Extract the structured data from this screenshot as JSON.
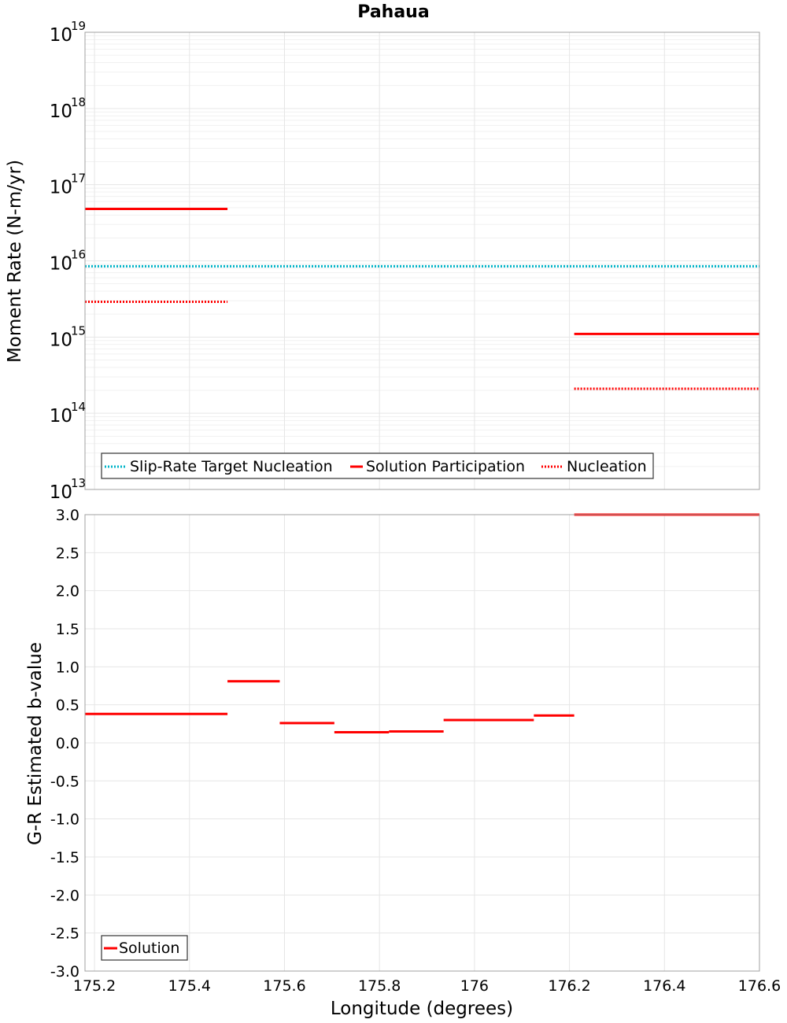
{
  "chart_data": [
    {
      "type": "line",
      "title": "Pahaua",
      "xlabel": "Longitude (degrees)",
      "ylabel": "Moment Rate (N-m/yr)",
      "yscale": "log",
      "xlim": [
        175.18,
        176.6
      ],
      "ylim": [
        10000000000000.0,
        1e+19
      ],
      "y_tick_labels": [
        {
          "base": "10",
          "exp": "13"
        },
        {
          "base": "10",
          "exp": "14"
        },
        {
          "base": "10",
          "exp": "15"
        },
        {
          "base": "10",
          "exp": "16"
        },
        {
          "base": "10",
          "exp": "17"
        },
        {
          "base": "10",
          "exp": "18"
        },
        {
          "base": "10",
          "exp": "19"
        }
      ],
      "legend": [
        "Slip-Rate Target Nucleation",
        "Solution Participation",
        "Nucleation"
      ],
      "series": [
        {
          "name": "Slip-Rate Target Nucleation",
          "color": "#00b4c8",
          "style": "dotted",
          "segments": [
            [
              175.18,
              176.6,
              8500000000000000.0
            ]
          ]
        },
        {
          "name": "Solution Participation",
          "color": "#ff0000",
          "style": "solid",
          "segments": [
            [
              175.18,
              175.48,
              4.8e+16
            ],
            [
              176.21,
              176.6,
              1100000000000000.0
            ]
          ]
        },
        {
          "name": "Nucleation",
          "color": "#ff0000",
          "style": "dotted",
          "segments": [
            [
              175.18,
              175.48,
              2900000000000000.0
            ],
            [
              176.21,
              176.6,
              210000000000000.0
            ]
          ]
        }
      ]
    },
    {
      "type": "line",
      "title": "",
      "xlabel": "Longitude (degrees)",
      "ylabel": "G-R Estimated b-value",
      "xlim": [
        175.18,
        176.6
      ],
      "ylim": [
        -3.0,
        3.0
      ],
      "x_ticks": [
        175.2,
        175.4,
        175.6,
        175.8,
        176.0,
        176.2,
        176.4,
        176.6
      ],
      "x_tick_labels": [
        "175.2",
        "175.4",
        "175.6",
        "175.8",
        "176",
        "176.2",
        "176.4",
        "176.6"
      ],
      "y_ticks": [
        3.0,
        2.5,
        2.0,
        1.5,
        1.0,
        0.5,
        0.0,
        -0.5,
        -1.0,
        -1.5,
        -2.0,
        -2.5,
        -3.0
      ],
      "y_tick_labels": [
        "3.0",
        "2.5",
        "2.0",
        "1.5",
        "1.0",
        "0.5",
        "0.0",
        "-0.5",
        "-1.0",
        "-1.5",
        "-2.0",
        "-2.5",
        "-3.0"
      ],
      "legend": [
        "Solution"
      ],
      "series": [
        {
          "name": "Solution",
          "color": "#ff0000",
          "style": "solid",
          "segments": [
            [
              175.18,
              175.48,
              0.38
            ],
            [
              175.48,
              175.59,
              0.81
            ],
            [
              175.59,
              175.705,
              0.26
            ],
            [
              175.705,
              175.82,
              0.14
            ],
            [
              175.82,
              175.935,
              0.15
            ],
            [
              175.935,
              176.125,
              0.3
            ],
            [
              176.125,
              176.21,
              0.36
            ],
            [
              176.21,
              176.6,
              3.0
            ]
          ]
        }
      ]
    }
  ]
}
